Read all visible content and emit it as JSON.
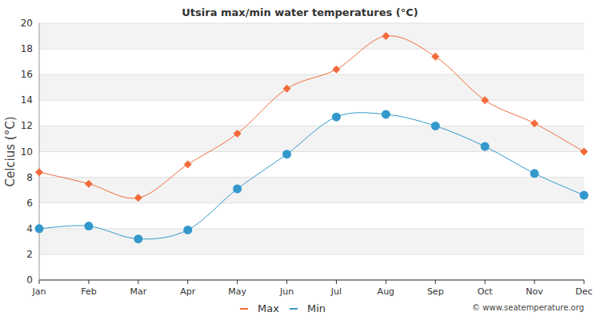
{
  "chart_data": {
    "type": "line",
    "title": "Utsira max/min water temperatures (°C)",
    "y_label": "Celcius (°C)",
    "annotations": [
      "© www.seatemperature.org"
    ],
    "categories": [
      "Jan",
      "Feb",
      "Mar",
      "Apr",
      "May",
      "Jun",
      "Jul",
      "Aug",
      "Sep",
      "Oct",
      "Nov",
      "Dec"
    ],
    "series": [
      {
        "name": "Max",
        "color": "#f26b3a",
        "marker": "diamond",
        "values": [
          8.4,
          7.5,
          6.4,
          9.0,
          11.4,
          14.9,
          16.4,
          19.0,
          17.4,
          14.0,
          12.2,
          10.0
        ]
      },
      {
        "name": "Min",
        "color": "#3399cc",
        "marker": "circle",
        "values": [
          4.0,
          4.2,
          3.2,
          3.9,
          7.1,
          9.8,
          12.7,
          12.9,
          12.0,
          10.4,
          8.3,
          6.6
        ]
      }
    ],
    "ylim": [
      0,
      20
    ],
    "yticks": [
      0,
      2,
      4,
      6,
      8,
      10,
      12,
      14,
      16,
      18,
      20
    ],
    "grid": true,
    "legend": "bottom"
  }
}
